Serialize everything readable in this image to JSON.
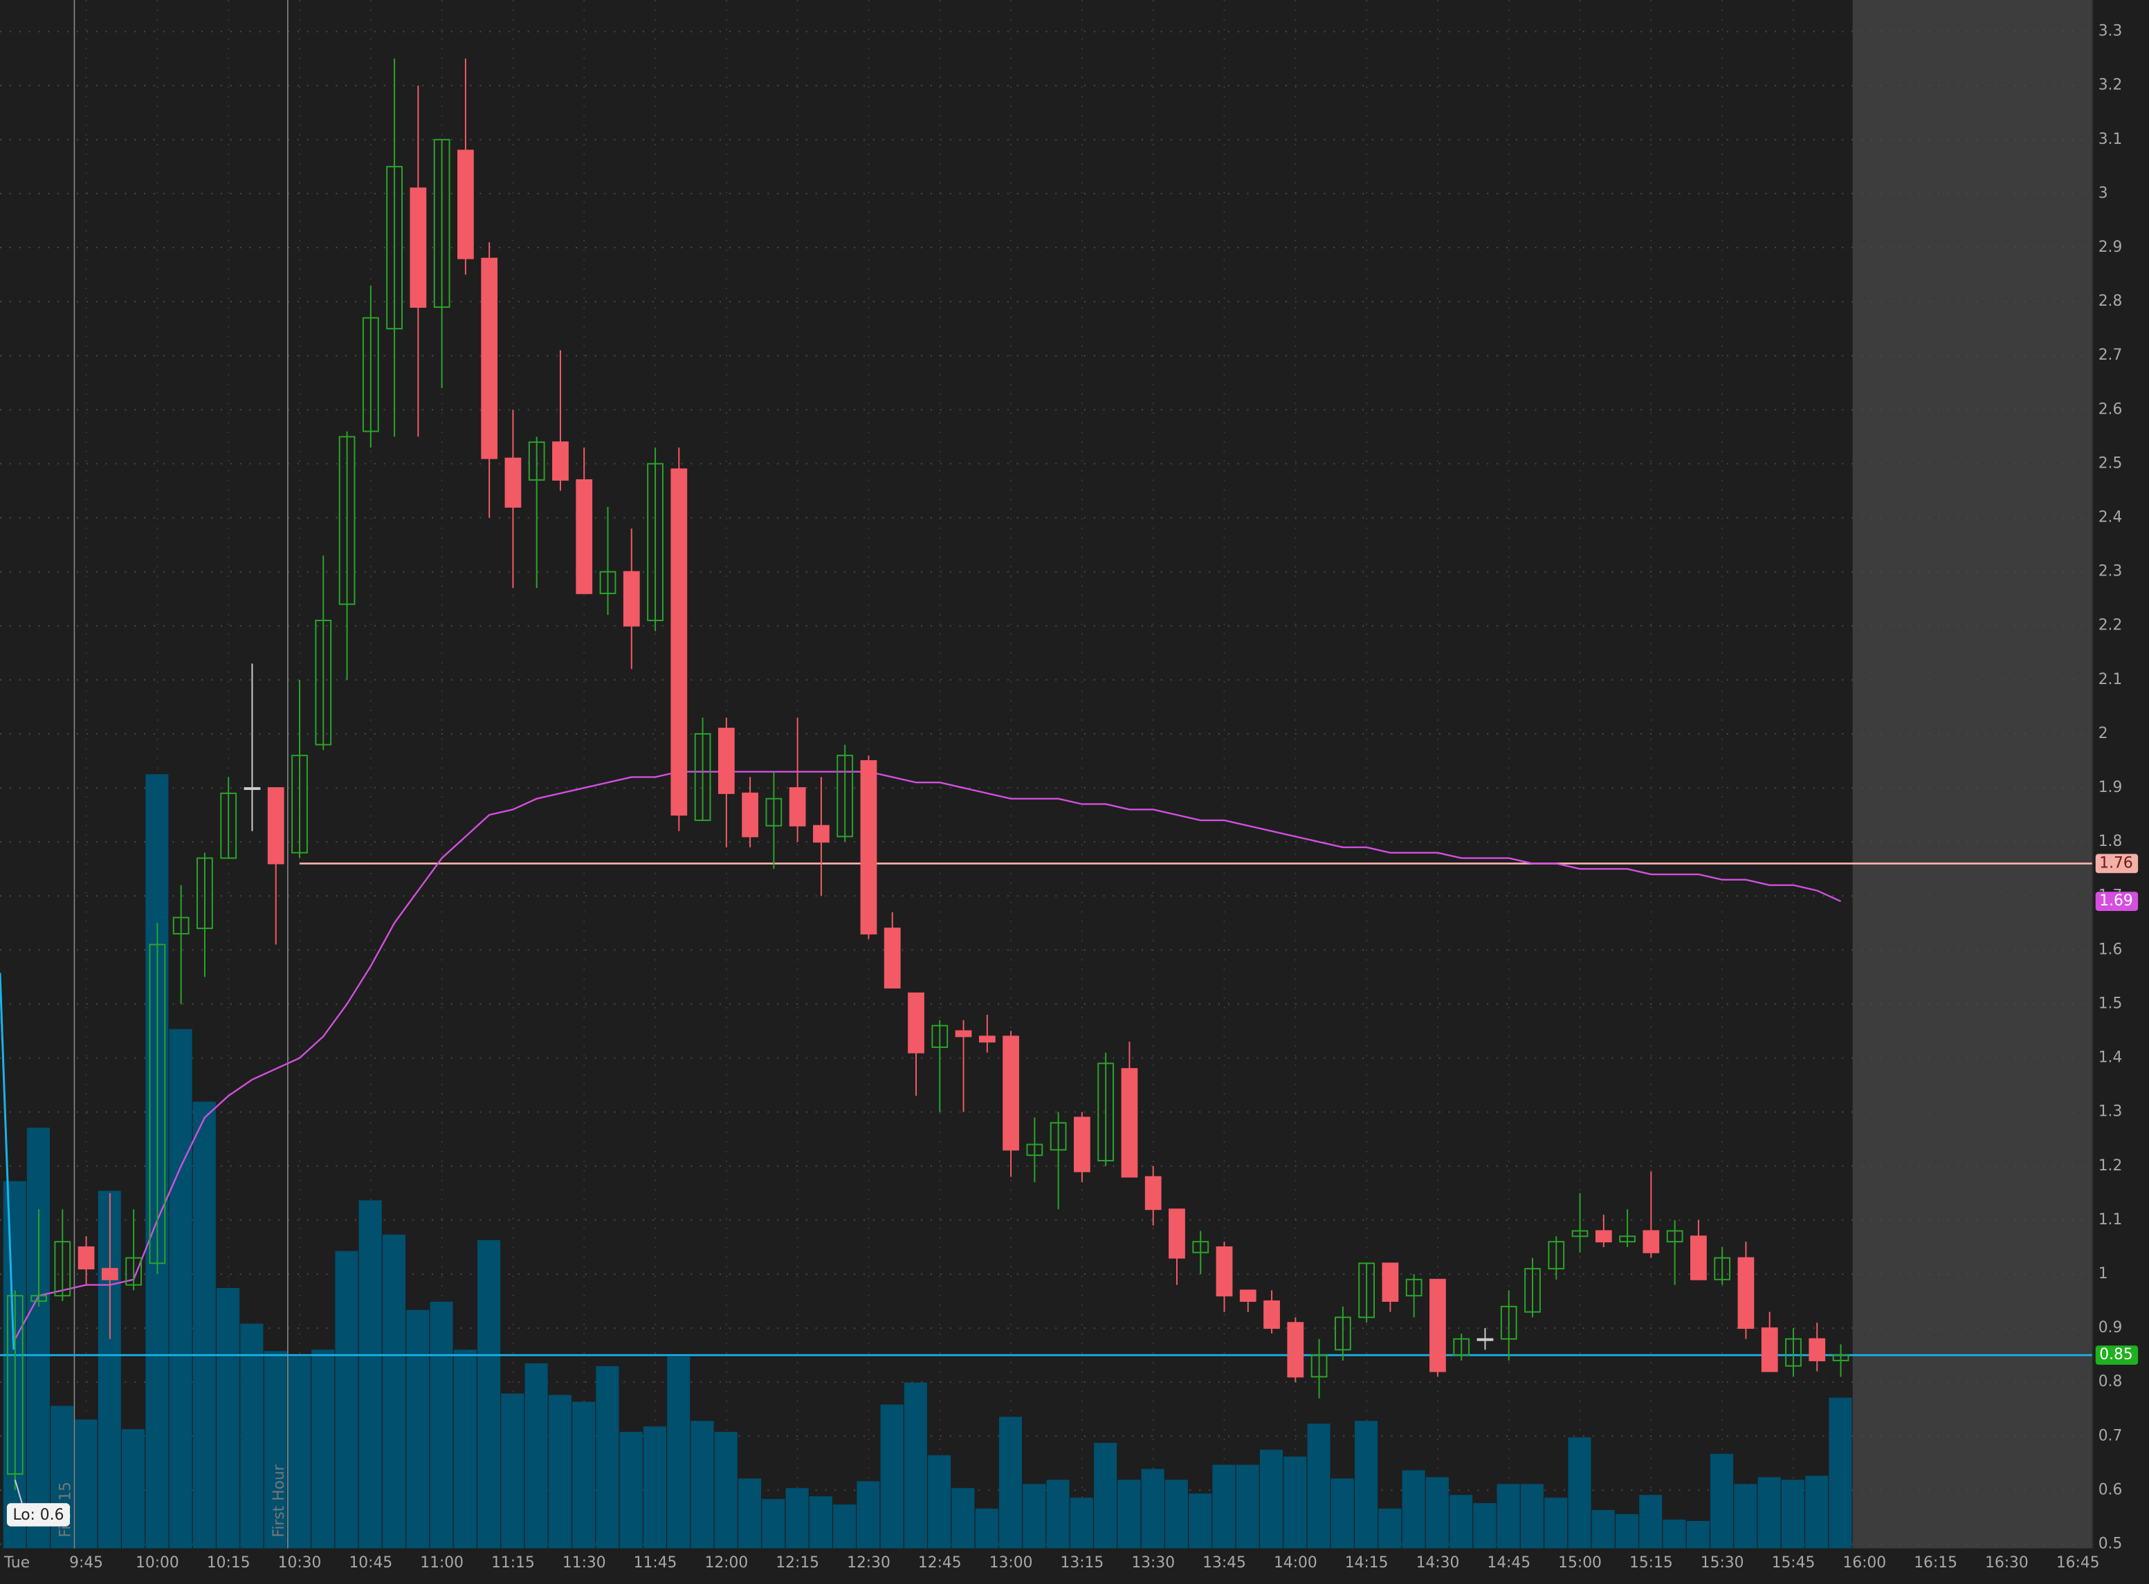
{
  "chart_data": {
    "type": "candlestick",
    "day_label": "Tue",
    "low_annotation": "Lo: 0.6",
    "x": [
      "9:30",
      "9:35",
      "9:40",
      "9:45",
      "9:50",
      "9:55",
      "10:00",
      "10:05",
      "10:10",
      "10:15",
      "10:20",
      "10:25",
      "10:30",
      "10:35",
      "10:40",
      "10:45",
      "10:50",
      "10:55",
      "11:00",
      "11:05",
      "11:10",
      "11:15",
      "11:20",
      "11:25",
      "11:30",
      "11:35",
      "11:40",
      "11:45",
      "11:50",
      "11:55",
      "12:00",
      "12:05",
      "12:10",
      "12:15",
      "12:20",
      "12:25",
      "12:30",
      "12:35",
      "12:40",
      "12:45",
      "12:50",
      "12:55",
      "13:00",
      "13:05",
      "13:10",
      "13:15",
      "13:20",
      "13:25",
      "13:30",
      "13:35",
      "13:40",
      "13:45",
      "13:50",
      "13:55",
      "14:00",
      "14:05",
      "14:10",
      "14:15",
      "14:20",
      "14:25",
      "14:30",
      "14:35",
      "14:40",
      "14:45",
      "14:50",
      "14:55",
      "15:00",
      "15:05",
      "15:10",
      "15:15",
      "15:20",
      "15:25",
      "15:30",
      "15:35",
      "15:40",
      "15:45",
      "15:50",
      "15:55"
    ],
    "open": [
      0.63,
      0.95,
      0.96,
      1.05,
      1.01,
      0.98,
      1.02,
      1.63,
      1.64,
      1.77,
      1.9,
      1.9,
      1.78,
      1.98,
      2.24,
      2.56,
      2.75,
      3.01,
      2.79,
      3.08,
      2.88,
      2.51,
      2.47,
      2.54,
      2.47,
      2.26,
      2.3,
      2.21,
      2.49,
      1.84,
      2.01,
      1.89,
      1.83,
      1.9,
      1.83,
      1.81,
      1.95,
      1.64,
      1.52,
      1.42,
      1.45,
      1.44,
      1.44,
      1.22,
      1.23,
      1.29,
      1.21,
      1.38,
      1.18,
      1.12,
      1.04,
      1.05,
      0.97,
      0.95,
      0.91,
      0.81,
      0.86,
      0.92,
      1.02,
      0.96,
      0.99,
      0.85,
      0.88,
      0.88,
      0.93,
      1.01,
      1.07,
      1.08,
      1.06,
      1.08,
      1.06,
      1.07,
      0.99,
      1.03,
      0.9,
      0.83,
      0.88,
      0.84
    ],
    "high": [
      0.97,
      1.12,
      1.12,
      1.07,
      1.15,
      1.12,
      1.65,
      1.72,
      1.78,
      1.92,
      2.13,
      1.9,
      2.1,
      2.33,
      2.56,
      2.83,
      3.25,
      3.2,
      3.1,
      3.25,
      2.91,
      2.6,
      2.55,
      2.71,
      2.53,
      2.42,
      2.38,
      2.53,
      2.53,
      2.03,
      2.03,
      1.92,
      1.93,
      2.03,
      1.92,
      1.98,
      1.96,
      1.67,
      1.52,
      1.47,
      1.47,
      1.48,
      1.45,
      1.29,
      1.3,
      1.3,
      1.41,
      1.43,
      1.2,
      1.12,
      1.08,
      1.06,
      0.97,
      0.97,
      0.92,
      0.88,
      0.94,
      1.02,
      1.02,
      1.0,
      0.99,
      0.89,
      0.9,
      0.97,
      1.03,
      1.07,
      1.15,
      1.11,
      1.12,
      1.19,
      1.1,
      1.1,
      1.05,
      1.06,
      0.93,
      0.9,
      0.91,
      0.87
    ],
    "low": [
      0.6,
      0.94,
      0.95,
      0.98,
      0.88,
      0.97,
      1.0,
      1.5,
      1.55,
      1.77,
      1.82,
      1.61,
      1.77,
      1.97,
      2.1,
      2.53,
      2.55,
      2.55,
      2.64,
      2.85,
      2.4,
      2.27,
      2.27,
      2.45,
      2.26,
      2.22,
      2.12,
      2.19,
      1.82,
      1.84,
      1.79,
      1.79,
      1.75,
      1.8,
      1.7,
      1.8,
      1.62,
      1.53,
      1.33,
      1.3,
      1.3,
      1.41,
      1.18,
      1.17,
      1.12,
      1.17,
      1.2,
      1.18,
      1.09,
      0.98,
      1.0,
      0.93,
      0.93,
      0.89,
      0.8,
      0.77,
      0.84,
      0.91,
      0.93,
      0.92,
      0.81,
      0.84,
      0.86,
      0.84,
      0.92,
      0.99,
      1.04,
      1.05,
      1.05,
      1.03,
      0.98,
      0.99,
      0.98,
      0.88,
      0.82,
      0.81,
      0.82,
      0.81
    ],
    "close": [
      0.96,
      0.96,
      1.06,
      1.01,
      0.99,
      1.03,
      1.61,
      1.66,
      1.77,
      1.89,
      1.9,
      1.76,
      1.96,
      2.21,
      2.55,
      2.77,
      3.05,
      2.79,
      3.1,
      2.88,
      2.51,
      2.42,
      2.54,
      2.47,
      2.26,
      2.3,
      2.2,
      2.5,
      1.85,
      2.0,
      1.89,
      1.81,
      1.88,
      1.83,
      1.8,
      1.96,
      1.63,
      1.53,
      1.41,
      1.46,
      1.44,
      1.43,
      1.23,
      1.24,
      1.28,
      1.19,
      1.39,
      1.18,
      1.12,
      1.03,
      1.06,
      0.96,
      0.95,
      0.9,
      0.81,
      0.85,
      0.92,
      1.02,
      0.95,
      0.99,
      0.82,
      0.88,
      0.88,
      0.94,
      1.01,
      1.06,
      1.08,
      1.06,
      1.07,
      1.04,
      1.08,
      0.99,
      1.03,
      0.9,
      0.82,
      0.88,
      0.84,
      0.85
    ],
    "volume": [
      268,
      307,
      104,
      94,
      261,
      87,
      565,
      379,
      326,
      190,
      164,
      144,
      140,
      145,
      217,
      254,
      229,
      174,
      180,
      145,
      225,
      113,
      135,
      112,
      107,
      133,
      85,
      89,
      140,
      93,
      85,
      51,
      36,
      44,
      38,
      32,
      49,
      105,
      121,
      68,
      44,
      29,
      96,
      47,
      50,
      37,
      77,
      50,
      58,
      50,
      40,
      61,
      61,
      72,
      67,
      91,
      51,
      93,
      29,
      57,
      52,
      39,
      33,
      47,
      47,
      37,
      81,
      28,
      25,
      39,
      21,
      20,
      69,
      47,
      52,
      50,
      53,
      110
    ],
    "vlim": [
      0,
      600
    ],
    "volume_color": "#00506e",
    "vwap": [
      0.88,
      0.96,
      0.97,
      0.98,
      0.98,
      0.99,
      1.1,
      1.2,
      1.29,
      1.33,
      1.36,
      1.38,
      1.4,
      1.44,
      1.5,
      1.57,
      1.65,
      1.71,
      1.77,
      1.81,
      1.85,
      1.86,
      1.88,
      1.89,
      1.9,
      1.91,
      1.92,
      1.92,
      1.93,
      1.93,
      1.93,
      1.93,
      1.93,
      1.93,
      1.93,
      1.93,
      1.93,
      1.92,
      1.91,
      1.91,
      1.9,
      1.89,
      1.88,
      1.88,
      1.88,
      1.87,
      1.87,
      1.86,
      1.86,
      1.85,
      1.84,
      1.84,
      1.83,
      1.82,
      1.81,
      1.8,
      1.79,
      1.79,
      1.78,
      1.78,
      1.78,
      1.77,
      1.77,
      1.77,
      1.76,
      1.76,
      1.75,
      1.75,
      1.75,
      1.74,
      1.74,
      1.74,
      1.73,
      1.73,
      1.72,
      1.72,
      1.71,
      1.69
    ],
    "vwap_color": "#d44fe0",
    "vwap_tag": {
      "value": 1.69,
      "label": "1.69"
    },
    "up_color": "#2aa52a",
    "down_color": "#f25a65",
    "doji_color": "#cccccc",
    "levels": [
      {
        "value": 1.76,
        "label": "1.76",
        "color": "#f2b0a8",
        "tag_color": "#f2b0a8",
        "start": "10:30"
      },
      {
        "value": 0.85,
        "label": "0.85",
        "color": "#19b4ea",
        "tag_color": "#1fb01f",
        "start": "9:30"
      }
    ],
    "markers": [
      {
        "time": "9:45",
        "label": "First 15"
      },
      {
        "time": "10:30",
        "label": "First Hour"
      }
    ],
    "extended_start": "16:00",
    "ylim": [
      0.5,
      3.3
    ],
    "yticks": [
      0.5,
      0.6,
      0.7,
      0.8,
      0.9,
      1,
      1.1,
      1.2,
      1.3,
      1.4,
      1.5,
      1.6,
      1.7,
      1.8,
      1.9,
      2,
      2.1,
      2.2,
      2.3,
      2.4,
      2.5,
      2.6,
      2.7,
      2.8,
      2.9,
      3,
      3.1,
      3.2,
      3.3
    ],
    "xticks": [
      "9:45",
      "10:00",
      "10:15",
      "10:30",
      "10:45",
      "11:00",
      "11:15",
      "11:30",
      "11:45",
      "12:00",
      "12:15",
      "12:30",
      "12:45",
      "13:00",
      "13:15",
      "13:30",
      "13:45",
      "14:00",
      "14:15",
      "14:30",
      "14:45",
      "15:00",
      "15:15",
      "15:30",
      "15:45",
      "16:00",
      "16:15",
      "16:30",
      "16:45"
    ],
    "grid": true
  }
}
